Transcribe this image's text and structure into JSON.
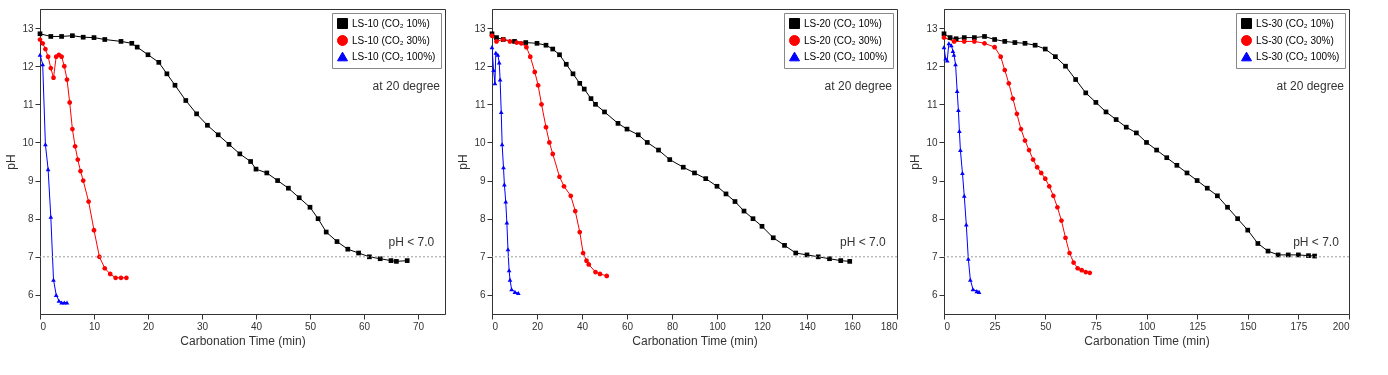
{
  "chart_data": [
    {
      "type": "line",
      "xlabel": "Carbonation Time (min)",
      "ylabel": "pH",
      "xlim": [
        0,
        75
      ],
      "xticks": [
        0,
        10,
        20,
        30,
        40,
        50,
        60,
        70
      ],
      "ylim": [
        5.5,
        13.5
      ],
      "yticks": [
        6,
        7,
        8,
        9,
        10,
        11,
        12,
        13
      ],
      "grid": false,
      "legend": "top right",
      "series": [
        {
          "name": "LS-10 (CO₂ 10%)",
          "color": "#000000",
          "marker": "square",
          "x": [
            0,
            2,
            4,
            6,
            8,
            10,
            12,
            15,
            17,
            18,
            20,
            22,
            23.5,
            25,
            27,
            29,
            31,
            33,
            35,
            37,
            39,
            40,
            42,
            44,
            46,
            48,
            50,
            51.5,
            53,
            55,
            57,
            59,
            61,
            63,
            65,
            66,
            68
          ],
          "values": [
            12.85,
            12.78,
            12.78,
            12.8,
            12.76,
            12.75,
            12.7,
            12.65,
            12.6,
            12.5,
            12.3,
            12.1,
            11.8,
            11.5,
            11.1,
            10.75,
            10.45,
            10.2,
            9.95,
            9.7,
            9.5,
            9.3,
            9.2,
            9.0,
            8.8,
            8.55,
            8.3,
            8.0,
            7.65,
            7.4,
            7.2,
            7.1,
            7.0,
            6.95,
            6.9,
            6.88,
            6.9
          ]
        },
        {
          "name": "LS-10 (CO₂ 30%)",
          "color": "#ff0000",
          "marker": "circle",
          "x": [
            0,
            0.5,
            1,
            1.5,
            2,
            2.5,
            3,
            3.5,
            4,
            4.5,
            5,
            5.5,
            6,
            6.5,
            7,
            7.5,
            8,
            9,
            10,
            11,
            12,
            13,
            14,
            15,
            16
          ],
          "values": [
            12.7,
            12.6,
            12.45,
            12.25,
            11.95,
            11.7,
            12.25,
            12.3,
            12.25,
            12.0,
            11.65,
            11.05,
            10.35,
            9.9,
            9.55,
            9.25,
            9.0,
            8.45,
            7.7,
            7.0,
            6.7,
            6.55,
            6.45,
            6.45,
            6.45
          ]
        },
        {
          "name": "LS-10 (CO₂ 100%)",
          "color": "#0000ff",
          "marker": "triangle",
          "x": [
            0,
            0.5,
            1,
            1.5,
            2,
            2.5,
            3,
            3.5,
            4,
            4.5,
            5
          ],
          "values": [
            12.3,
            12.05,
            9.95,
            9.3,
            8.05,
            6.4,
            6.0,
            5.85,
            5.8,
            5.8,
            5.8
          ]
        }
      ],
      "ref_lines": [
        {
          "axis": "y",
          "value": 7,
          "color": "#999999",
          "line_style": "dotted"
        }
      ],
      "annotations": [
        "at 20 degree",
        {
          "text": "pH < 7.0",
          "x": 73,
          "y": 7
        }
      ]
    },
    {
      "type": "line",
      "xlabel": "Carbonation Time (min)",
      "ylabel": "pH",
      "xlim": [
        0,
        180
      ],
      "xticks": [
        0,
        20,
        40,
        60,
        80,
        100,
        120,
        140,
        160,
        180
      ],
      "ylim": [
        5.5,
        13.5
      ],
      "yticks": [
        6,
        7,
        8,
        9,
        10,
        11,
        12,
        13
      ],
      "grid": false,
      "legend": "top right",
      "series": [
        {
          "name": "LS-20 (CO₂ 10%)",
          "color": "#000000",
          "marker": "square",
          "x": [
            0,
            2,
            5,
            10,
            15,
            20,
            24,
            27,
            30,
            33,
            36,
            39,
            41,
            44,
            46,
            50,
            56,
            60,
            65,
            69,
            74,
            79,
            85,
            90,
            95,
            100,
            104,
            108,
            112,
            116,
            120,
            125,
            130,
            135,
            140,
            145,
            150,
            155,
            159
          ],
          "values": [
            12.85,
            12.75,
            12.7,
            12.65,
            12.62,
            12.6,
            12.55,
            12.45,
            12.3,
            12.05,
            11.8,
            11.55,
            11.4,
            11.15,
            11.0,
            10.8,
            10.5,
            10.35,
            10.2,
            10.0,
            9.8,
            9.55,
            9.35,
            9.2,
            9.05,
            8.85,
            8.65,
            8.45,
            8.2,
            8.0,
            7.8,
            7.5,
            7.3,
            7.1,
            7.05,
            7.0,
            6.95,
            6.9,
            6.88
          ]
        },
        {
          "name": "LS-20 (CO₂ 30%)",
          "color": "#ff0000",
          "marker": "circle",
          "x": [
            0,
            2,
            5,
            8,
            11,
            13,
            15.3,
            17,
            19,
            20.5,
            22,
            24,
            25.5,
            27,
            30,
            32,
            35,
            37,
            39,
            40.5,
            42,
            43,
            46,
            48,
            51
          ],
          "values": [
            12.8,
            12.65,
            12.7,
            12.65,
            12.62,
            12.6,
            12.5,
            12.25,
            11.85,
            11.5,
            11.0,
            10.4,
            10.0,
            9.7,
            9.1,
            8.85,
            8.6,
            8.2,
            7.65,
            7.1,
            6.9,
            6.8,
            6.6,
            6.55,
            6.5
          ]
        },
        {
          "name": "LS-20 (CO₂ 100%)",
          "color": "#0000ff",
          "marker": "triangle",
          "x": [
            0,
            0.7,
            1.3,
            1.7,
            2.6,
            3.2,
            3.6,
            4.1,
            4.5,
            5.1,
            5.5,
            6.1,
            6.6,
            7.1,
            7.6,
            8.0,
            8.7,
            10.2,
            11.7
          ],
          "values": [
            12.5,
            11.9,
            11.55,
            12.35,
            12.3,
            12.1,
            11.65,
            10.8,
            9.95,
            9.35,
            8.9,
            8.45,
            7.9,
            7.2,
            6.65,
            6.4,
            6.15,
            6.08,
            6.05
          ]
        }
      ],
      "ref_lines": [
        {
          "axis": "y",
          "value": 7,
          "color": "#999999",
          "line_style": "dotted"
        }
      ],
      "annotations": [
        "at 20 degree",
        {
          "text": "pH < 7.0",
          "x": 175,
          "y": 7
        }
      ]
    },
    {
      "type": "line",
      "xlabel": "Carbonation Time (min)",
      "ylabel": "pH",
      "xlim": [
        0,
        200
      ],
      "xticks": [
        0,
        25,
        50,
        75,
        100,
        125,
        150,
        175,
        200
      ],
      "ylim": [
        5.5,
        13.5
      ],
      "yticks": [
        6,
        7,
        8,
        9,
        10,
        11,
        12,
        13
      ],
      "grid": false,
      "legend": "top right",
      "series": [
        {
          "name": "LS-30 (CO₂ 10%)",
          "color": "#000000",
          "marker": "square",
          "x": [
            0,
            3,
            6,
            10,
            15,
            20,
            25,
            30,
            35,
            40,
            45,
            50,
            55,
            60,
            65,
            70,
            75,
            80,
            85,
            90,
            95,
            100,
            105,
            110,
            115,
            120,
            125,
            130,
            135,
            140,
            145,
            150,
            155,
            160,
            165,
            170,
            175,
            180,
            183
          ],
          "values": [
            12.85,
            12.75,
            12.72,
            12.75,
            12.75,
            12.78,
            12.7,
            12.65,
            12.62,
            12.6,
            12.55,
            12.45,
            12.25,
            12.0,
            11.65,
            11.3,
            11.05,
            10.8,
            10.6,
            10.4,
            10.25,
            10.0,
            9.8,
            9.6,
            9.4,
            9.2,
            9.0,
            8.8,
            8.6,
            8.3,
            8.0,
            7.7,
            7.35,
            7.15,
            7.05,
            7.05,
            7.05,
            7.03,
            7.02
          ]
        },
        {
          "name": "LS-30 (CO₂ 30%)",
          "color": "#ff0000",
          "marker": "circle",
          "x": [
            0,
            5,
            10,
            15,
            20,
            25,
            28,
            30,
            32,
            34,
            36,
            38,
            40,
            42,
            44,
            46,
            48,
            50,
            52,
            54,
            56,
            58,
            60,
            62,
            64,
            66,
            68,
            70,
            72
          ],
          "values": [
            12.75,
            12.65,
            12.65,
            12.65,
            12.6,
            12.5,
            12.25,
            11.9,
            11.55,
            11.15,
            10.75,
            10.35,
            10.05,
            9.8,
            9.55,
            9.35,
            9.2,
            9.05,
            8.85,
            8.6,
            8.3,
            7.95,
            7.5,
            7.1,
            6.85,
            6.7,
            6.65,
            6.6,
            6.58
          ]
        },
        {
          "name": "LS-30 (CO₂ 100%)",
          "color": "#0000ff",
          "marker": "triangle",
          "x": [
            0,
            0.8,
            1.6,
            2.4,
            3.6,
            4.4,
            4.9,
            5.7,
            6.5,
            7.1,
            7.6,
            8.1,
            9.1,
            10,
            11,
            12,
            13,
            14.3,
            16.2,
            17.3
          ],
          "values": [
            12.5,
            12.2,
            12.15,
            12.6,
            12.55,
            12.4,
            12.3,
            12.05,
            11.35,
            10.85,
            10.3,
            9.8,
            9.2,
            8.6,
            7.85,
            6.95,
            6.4,
            6.15,
            6.1,
            6.08
          ]
        }
      ],
      "ref_lines": [
        {
          "axis": "y",
          "value": 7,
          "color": "#999999",
          "line_style": "dotted"
        }
      ],
      "annotations": [
        "at 20 degree",
        {
          "text": "pH < 7.0",
          "x": 195,
          "y": 7
        }
      ]
    }
  ]
}
